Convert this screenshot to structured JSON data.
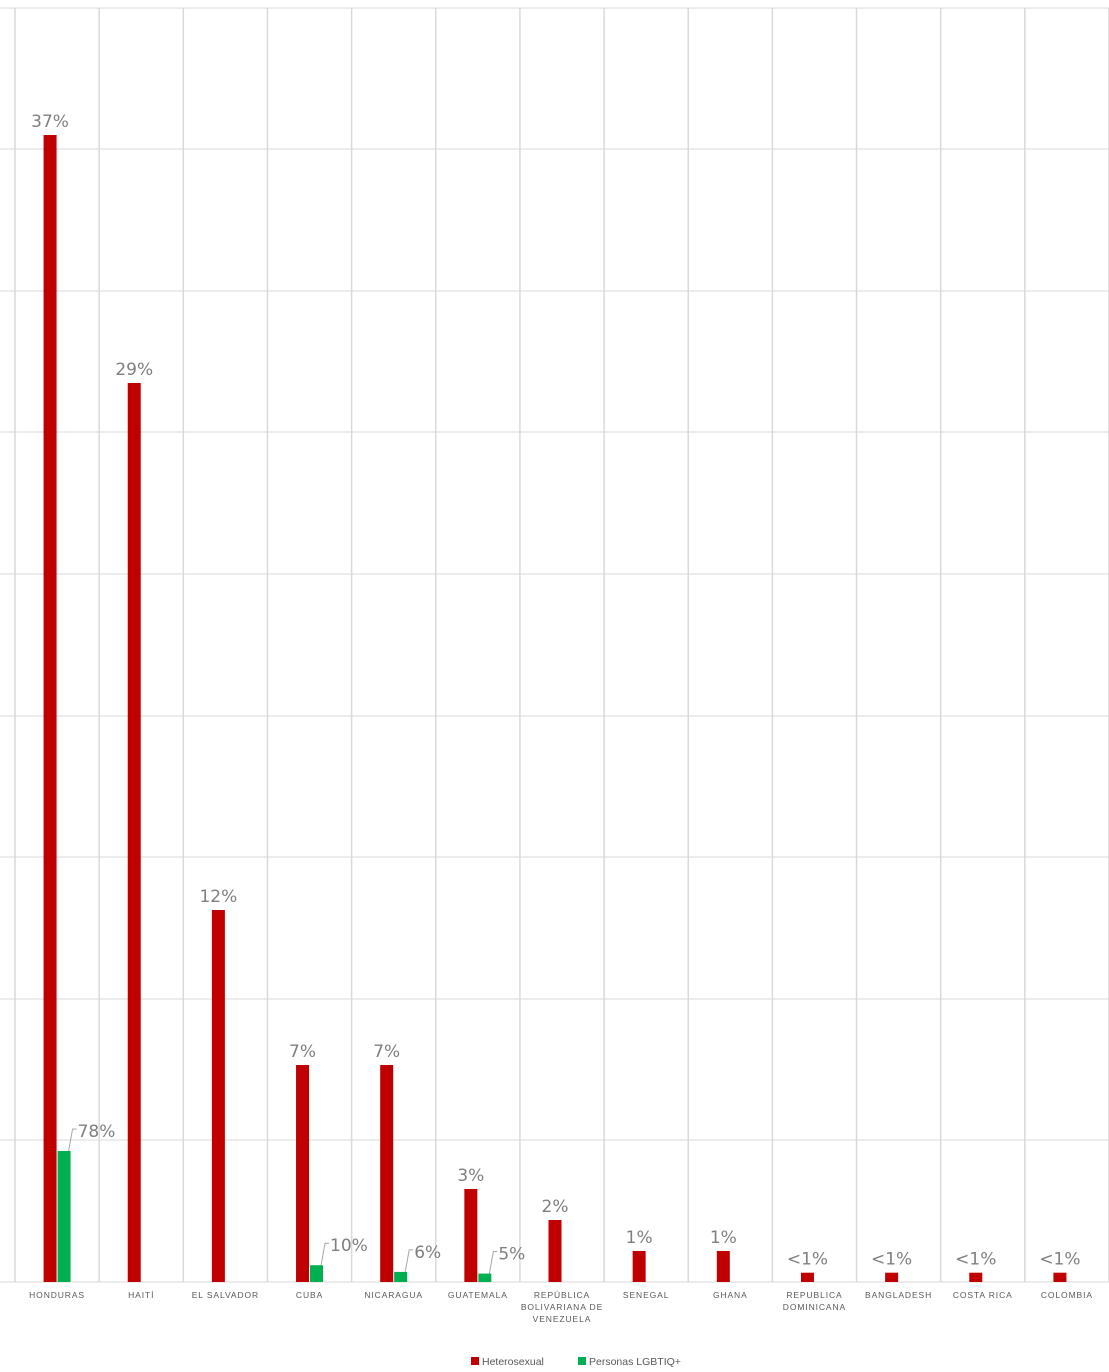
{
  "chart_data": {
    "type": "bar",
    "categories": [
      "HONDURAS",
      "HAITÍ",
      "EL SALVADOR",
      "CUBA",
      "NICARAGUA",
      "GUATEMALA",
      "REPÚBLICA BOLIVARIANA DE VENEZUELA",
      "SENEGAL",
      "GHANA",
      "REPUBLICA DOMINICANA",
      "BANGLADESH",
      "COSTA RICA",
      "COLOMBIA"
    ],
    "category_lines": [
      [
        "HONDURAS"
      ],
      [
        "HAITÍ"
      ],
      [
        "EL SALVADOR"
      ],
      [
        "CUBA"
      ],
      [
        "NICARAGUA"
      ],
      [
        "GUATEMALA"
      ],
      [
        "REPÚBLICA",
        "BOLIVARIANA DE",
        "VENEZUELA"
      ],
      [
        "SENEGAL"
      ],
      [
        "GHANA"
      ],
      [
        "REPUBLICA",
        "DOMINICANA"
      ],
      [
        "BANGLADESH"
      ],
      [
        "COSTA RICA"
      ],
      [
        "COLOMBIA"
      ]
    ],
    "series": [
      {
        "name": "Heterosexual",
        "color": "#c00000",
        "values": [
          37,
          29,
          12,
          7,
          7,
          3,
          2,
          1,
          1,
          0.3,
          0.3,
          0.3,
          0.3
        ],
        "labels": [
          "37%",
          "29%",
          "12%",
          "7%",
          "7%",
          "3%",
          "2%",
          "1%",
          "1%",
          "<1%",
          "<1%",
          "<1%",
          "<1%"
        ]
      },
      {
        "name": "Personas LGBTIQ+",
        "color": "#00b050",
        "values": [
          78,
          null,
          null,
          10,
          6,
          5,
          null,
          null,
          null,
          null,
          null,
          null,
          null
        ],
        "labels": [
          "78%",
          null,
          null,
          "10%",
          "6%",
          "5%",
          null,
          null,
          null,
          null,
          null,
          null,
          null
        ]
      }
    ],
    "gridlines": true,
    "legend_position": "bottom"
  }
}
